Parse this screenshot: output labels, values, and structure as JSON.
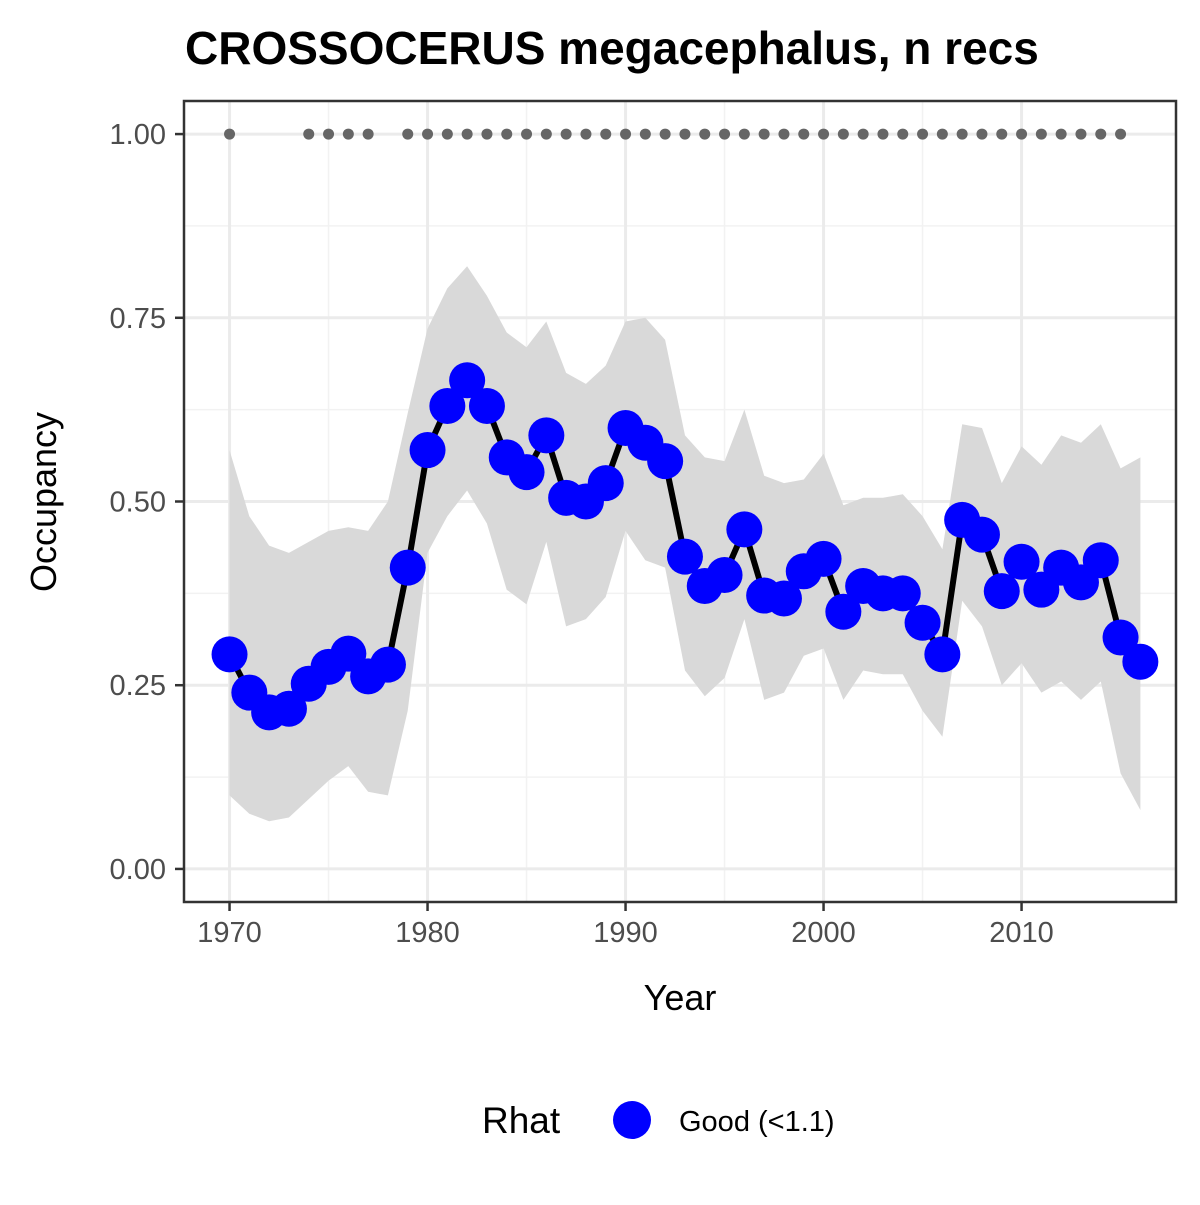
{
  "chart_data": {
    "type": "line",
    "title": "CROSSOCERUS megacephalus, n recs",
    "xlabel": "Year",
    "ylabel": "Occupancy",
    "xlim": [
      1967.7,
      2017.8
    ],
    "ylim": [
      -0.045,
      1.045
    ],
    "x_ticks": [
      "1970",
      "1980",
      "1990",
      "2000",
      "2010"
    ],
    "y_ticks": [
      "0.00",
      "0.25",
      "0.50",
      "0.75",
      "1.00"
    ],
    "grid": true,
    "legend": {
      "title": "Rhat",
      "position": "bottom",
      "entries": [
        "Good (<1.1)"
      ]
    },
    "colors": {
      "points": "#0000ff",
      "line": "#000000",
      "ribbon": "#d9d9d9",
      "record_dots": "#666666"
    },
    "series": [
      {
        "name": "Good (<1.1)",
        "x": [
          1970,
          1971,
          1972,
          1973,
          1974,
          1975,
          1976,
          1977,
          1978,
          1979,
          1980,
          1981,
          1982,
          1983,
          1984,
          1985,
          1986,
          1987,
          1988,
          1989,
          1990,
          1991,
          1992,
          1993,
          1994,
          1995,
          1996,
          1997,
          1998,
          1999,
          2000,
          2001,
          2002,
          2003,
          2004,
          2005,
          2006,
          2007,
          2008,
          2009,
          2010,
          2011,
          2012,
          2013,
          2014,
          2015,
          2016
        ],
        "mean": [
          0.292,
          0.24,
          0.213,
          0.218,
          0.252,
          0.275,
          0.293,
          0.262,
          0.278,
          0.41,
          0.57,
          0.63,
          0.665,
          0.63,
          0.56,
          0.54,
          0.59,
          0.505,
          0.5,
          0.525,
          0.6,
          0.58,
          0.555,
          0.425,
          0.385,
          0.4,
          0.462,
          0.372,
          0.368,
          0.405,
          0.422,
          0.35,
          0.385,
          0.375,
          0.375,
          0.335,
          0.292,
          0.475,
          0.455,
          0.378,
          0.418,
          0.38,
          0.41,
          0.39,
          0.42,
          0.315,
          0.282
        ],
        "lower": [
          0.1,
          0.075,
          0.065,
          0.07,
          0.095,
          0.12,
          0.14,
          0.105,
          0.1,
          0.215,
          0.43,
          0.48,
          0.515,
          0.47,
          0.38,
          0.36,
          0.445,
          0.33,
          0.34,
          0.37,
          0.46,
          0.42,
          0.41,
          0.27,
          0.235,
          0.26,
          0.34,
          0.23,
          0.24,
          0.29,
          0.3,
          0.23,
          0.27,
          0.265,
          0.265,
          0.215,
          0.18,
          0.365,
          0.33,
          0.25,
          0.28,
          0.24,
          0.255,
          0.23,
          0.255,
          0.13,
          0.08
        ],
        "upper": [
          0.57,
          0.48,
          0.44,
          0.43,
          0.445,
          0.46,
          0.465,
          0.46,
          0.5,
          0.62,
          0.735,
          0.79,
          0.82,
          0.78,
          0.73,
          0.71,
          0.745,
          0.675,
          0.66,
          0.685,
          0.745,
          0.75,
          0.72,
          0.59,
          0.56,
          0.555,
          0.625,
          0.535,
          0.525,
          0.53,
          0.565,
          0.495,
          0.505,
          0.505,
          0.51,
          0.48,
          0.435,
          0.605,
          0.6,
          0.525,
          0.575,
          0.55,
          0.59,
          0.58,
          0.605,
          0.545,
          0.56
        ]
      }
    ],
    "record_years": {
      "name": "records",
      "y": 1.0,
      "x": [
        1970,
        1974,
        1975,
        1976,
        1977,
        1979,
        1980,
        1981,
        1982,
        1983,
        1984,
        1985,
        1986,
        1987,
        1988,
        1989,
        1990,
        1991,
        1992,
        1993,
        1994,
        1995,
        1996,
        1997,
        1998,
        1999,
        2000,
        2001,
        2002,
        2003,
        2004,
        2005,
        2006,
        2007,
        2008,
        2009,
        2010,
        2011,
        2012,
        2013,
        2014,
        2015
      ]
    }
  }
}
